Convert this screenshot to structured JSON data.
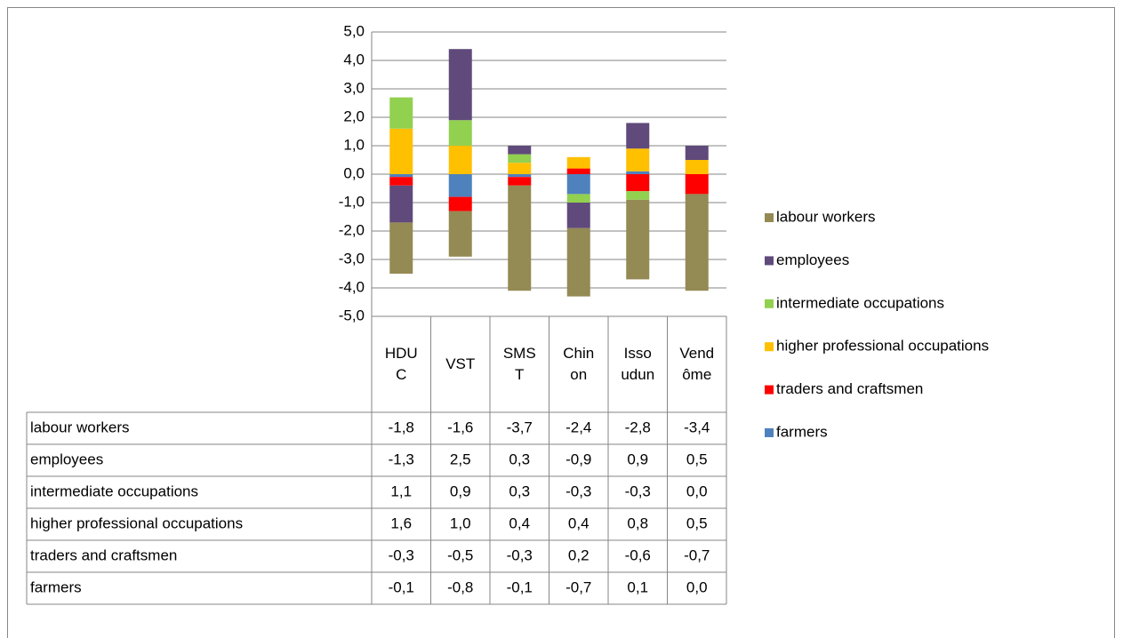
{
  "chart_data": {
    "type": "stacked_bar",
    "categories": [
      "HDUC",
      "VST",
      "SMST",
      "Chinon",
      "Issoudun",
      "Vendôme"
    ],
    "series": [
      {
        "name": "labour workers",
        "color": "#948a54",
        "values": [
          -1.8,
          -1.6,
          -3.7,
          -2.4,
          -2.8,
          -3.4
        ],
        "value_labels": [
          "-1,8",
          "-1,6",
          "-3,7",
          "-2,4",
          "-2,8",
          "-3,4"
        ]
      },
      {
        "name": "employees",
        "color": "#604a7b",
        "values": [
          -1.3,
          2.5,
          0.3,
          -0.9,
          0.9,
          0.5
        ],
        "value_labels": [
          "-1,3",
          "2,5",
          "0,3",
          "-0,9",
          "0,9",
          "0,5"
        ]
      },
      {
        "name": "intermediate occupations",
        "color": "#92d050",
        "values": [
          1.1,
          0.9,
          0.3,
          -0.3,
          -0.3,
          0.0
        ],
        "value_labels": [
          "1,1",
          "0,9",
          "0,3",
          "-0,3",
          "-0,3",
          "0,0"
        ]
      },
      {
        "name": "higher professional occupations",
        "color": "#ffc000",
        "values": [
          1.6,
          1.0,
          0.4,
          0.4,
          0.8,
          0.5
        ],
        "value_labels": [
          "1,6",
          "1,0",
          "0,4",
          "0,4",
          "0,8",
          "0,5"
        ]
      },
      {
        "name": "traders and craftsmen",
        "color": "#ff0000",
        "values": [
          -0.3,
          -0.5,
          -0.3,
          0.2,
          -0.6,
          -0.7
        ],
        "value_labels": [
          "-0,3",
          "-0,5",
          "-0,3",
          "0,2",
          "-0,6",
          "-0,7"
        ]
      },
      {
        "name": "farmers",
        "color": "#4f81bd",
        "values": [
          -0.1,
          -0.8,
          -0.1,
          -0.7,
          0.1,
          0.0
        ],
        "value_labels": [
          "-0,1",
          "-0,8",
          "-0,1",
          "-0,7",
          "0,1",
          "0,0"
        ]
      }
    ],
    "ylim": [
      -5,
      5
    ],
    "yticks": [
      {
        "value": -5,
        "label": "-5,0"
      },
      {
        "value": -4,
        "label": "-4,0"
      },
      {
        "value": -3,
        "label": "-3,0"
      },
      {
        "value": -2,
        "label": "-2,0"
      },
      {
        "value": -1,
        "label": "-1,0"
      },
      {
        "value": 0,
        "label": "0,0"
      },
      {
        "value": 1,
        "label": "1,0"
      },
      {
        "value": 2,
        "label": "2,0"
      },
      {
        "value": 3,
        "label": "3,0"
      },
      {
        "value": 4,
        "label": "4,0"
      },
      {
        "value": 5,
        "label": "5,0"
      }
    ],
    "grid": true,
    "legend": "right"
  }
}
